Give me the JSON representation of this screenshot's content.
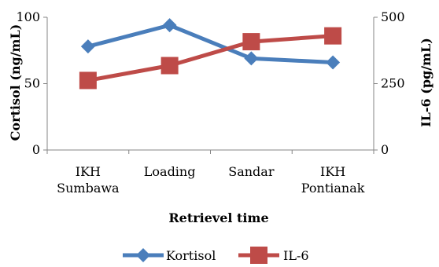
{
  "chart_data": {
    "type": "line",
    "categories": [
      [
        "IKH",
        "Sumbawa"
      ],
      [
        "Loading"
      ],
      [
        "Sandar"
      ],
      [
        "IKH",
        "Pontianak"
      ]
    ],
    "series": [
      {
        "name": "Kortisol",
        "axis": "left",
        "values": [
          78,
          94,
          69,
          66
        ],
        "color": "#4a7ebb",
        "marker": "diamond"
      },
      {
        "name": "IL-6",
        "axis": "right",
        "values": [
          262,
          318,
          408,
          430
        ],
        "color": "#be4b48",
        "marker": "square"
      }
    ],
    "xlabel": "Retrievel time",
    "ylabel_left": "Cortisol (ng/mL)",
    "ylabel_right": "IL-6 (pg/mL)",
    "ylim_left": [
      0,
      100
    ],
    "yticks_left": [
      "0",
      "50",
      "100"
    ],
    "ylim_right": [
      0,
      500
    ],
    "yticks_right": [
      "0",
      "250",
      "500"
    ],
    "grid": false,
    "legend_position": "bottom"
  }
}
